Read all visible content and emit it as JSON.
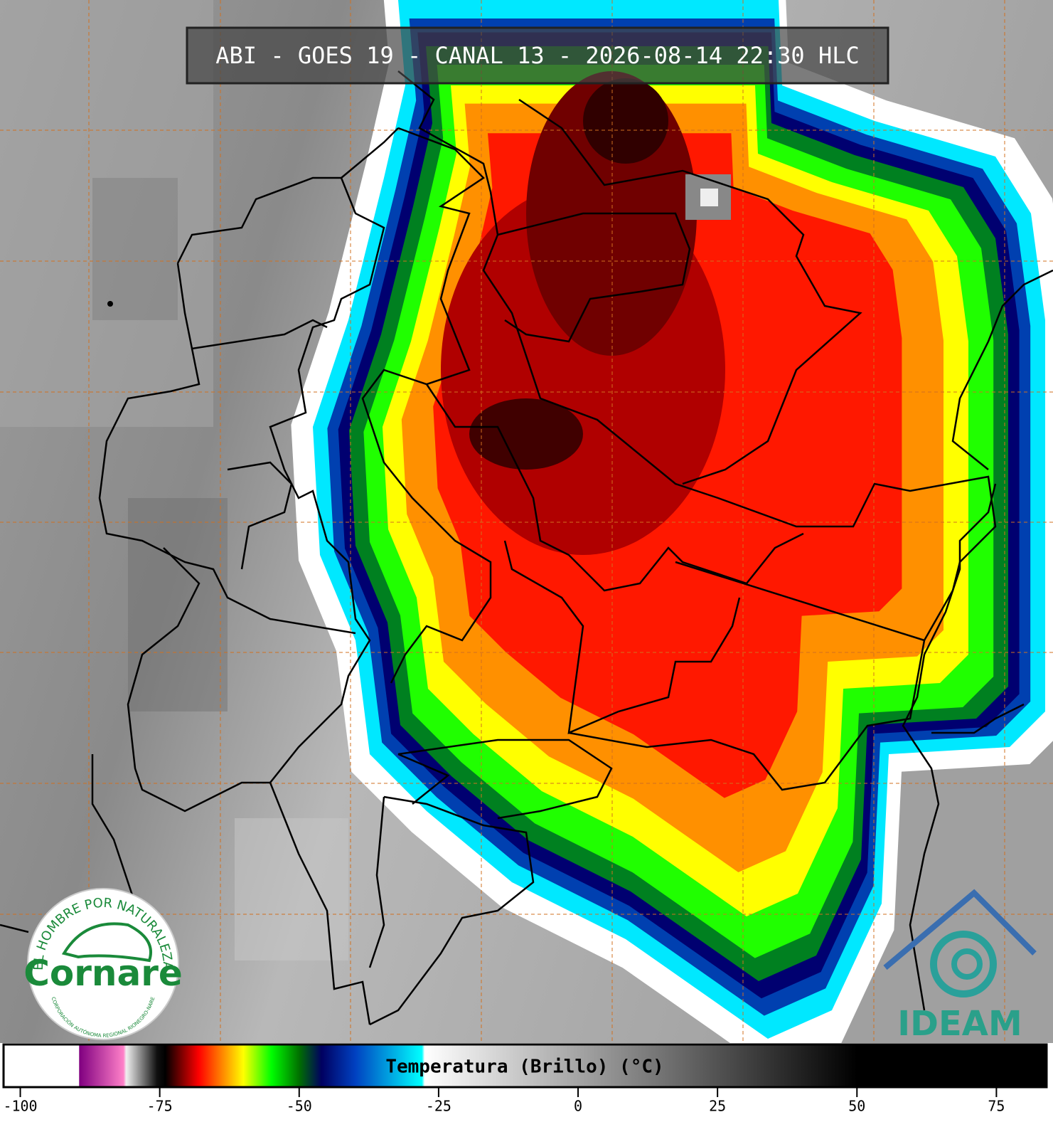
{
  "title": "ABI - GOES 19 - CANAL 13 - 2026-08-14 22:30 HLC",
  "colorbar": {
    "label": "Temperatura (Brillo) (°C)",
    "lim": [
      -103,
      84
    ],
    "ticks": [
      -100,
      -75,
      -50,
      -25,
      0,
      25,
      50,
      75
    ],
    "colormap": [
      {
        "value": -103,
        "color": "#ffffff"
      },
      {
        "value": -89.5,
        "color": "#ffffff"
      },
      {
        "value": -89.4,
        "color": "#800080"
      },
      {
        "value": -81.5,
        "color": "#ff80c8"
      },
      {
        "value": -81,
        "color": "#f0f0f0"
      },
      {
        "value": -75.5,
        "color": "#101010"
      },
      {
        "value": -74,
        "color": "#000000"
      },
      {
        "value": -68,
        "color": "#ff0000"
      },
      {
        "value": -64,
        "color": "#ff8000"
      },
      {
        "value": -60,
        "color": "#ffff00"
      },
      {
        "value": -55,
        "color": "#00ff00"
      },
      {
        "value": -50,
        "color": "#007000"
      },
      {
        "value": -46,
        "color": "#000060"
      },
      {
        "value": -40,
        "color": "#0040c0"
      },
      {
        "value": -28,
        "color": "#00ffff"
      },
      {
        "value": -27.5,
        "color": "#ffffff"
      },
      {
        "value": 50,
        "color": "#000000"
      },
      {
        "value": 84,
        "color": "#000000"
      }
    ]
  },
  "logos": {
    "cornare_motto": "EL HOMBRE POR NATURALEZA",
    "cornare_name": "Cornare",
    "cornare_sub": "CORPORACIÓN AUTÓNOMA REGIONAL RIONEGRO-NARE",
    "ideam": "IDEAM"
  }
}
